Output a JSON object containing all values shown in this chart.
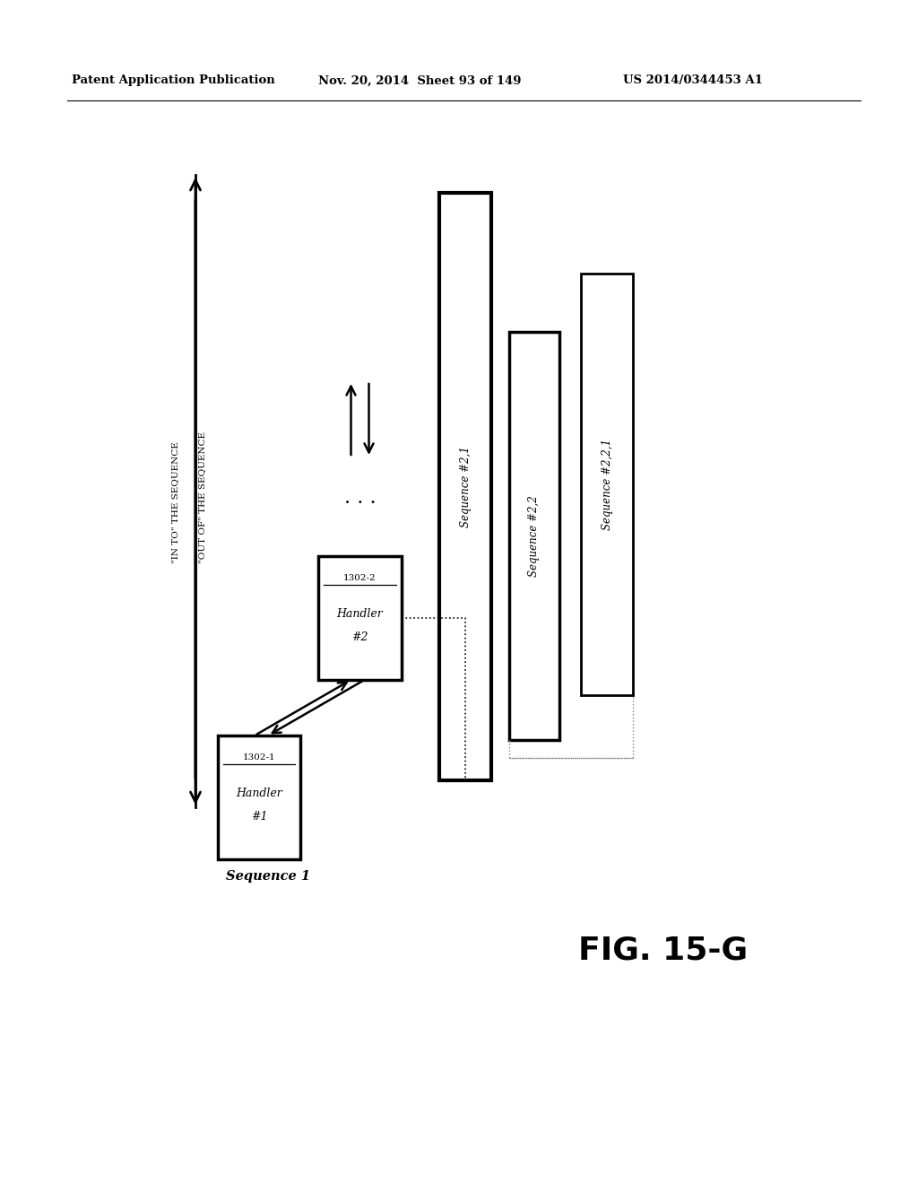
{
  "bg_color": "#ffffff",
  "header_left": "Patent Application Publication",
  "header_mid": "Nov. 20, 2014  Sheet 93 of 149",
  "header_right": "US 2014/0344453 A1",
  "fig_label": "FIG. 15-G",
  "sequence1_label": "Sequence 1",
  "handler1_id": "1302-1",
  "handler1_label_line1": "Handler",
  "handler1_label_line2": "#1",
  "handler2_id": "1302-2",
  "handler2_label_line1": "Handler",
  "handler2_label_line2": "#2",
  "seq21_label": "Sequence #2,1",
  "seq22_label": "Sequence #2,2",
  "seq221_label": "Sequence #2,2,1",
  "in_to_label": "\"IN TO\" THE SEQUENCE",
  "out_of_label": "\"OUT OF\" THE SEQUENCE"
}
